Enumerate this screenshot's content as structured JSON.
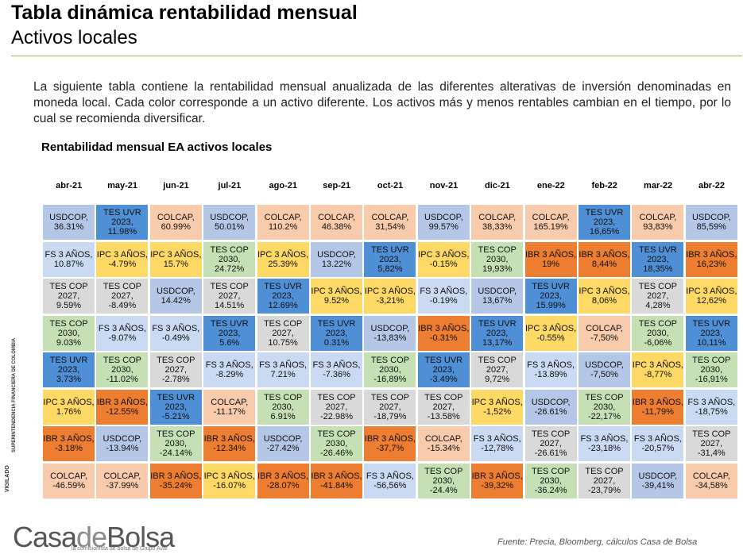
{
  "page": {
    "title": "Tabla dinámica rentabilidad mensual",
    "subtitle": "Activos locales",
    "intro": "La siguiente tabla contiene la rentabilidad mensual anualizada de las diferentes alterativas de inversión denominadas en moneda local. Cada color corresponde a un activo diferente. Los activos más y menos rentables cambian en el tiempo, por lo cual se recomienda diversificar.",
    "table_title": "Rentabilidad mensual EA activos locales",
    "side_label_1": "VIGILADO",
    "side_label_2": "SUPERINTENDENCIA FINANCIERA DE COLOMBIA",
    "logo_main_1": "Casa",
    "logo_main_2": "de",
    "logo_main_3": "Bolsa",
    "logo_tagline": "la comisionista de bolsa de Grupo Aval",
    "source": "Fuente: Precia, Bloomberg, cálculos Casa de Bolsa"
  },
  "colors": {
    "USDCOP": "#b4c7e7",
    "TES UVR 2023": "#4f8fd6",
    "COLCAP": "#f8cbad",
    "FS 3 AÑOS": "#c9daf2",
    "IPC 3 AÑOS": "#ffd966",
    "TES COP 2030": "#c5e0b4",
    "IBR 3 AÑOS": "#ed7d31",
    "TES COP 2027": "#d9d9d9"
  },
  "months": [
    "abr-21",
    "may-21",
    "jun-21",
    "jul-21",
    "ago-21",
    "sep-21",
    "oct-21",
    "nov-21",
    "dic-21",
    "ene-22",
    "feb-22",
    "mar-22",
    "abr-22"
  ],
  "rows": [
    [
      {
        "asset": "USDCOP",
        "lines": [
          "USDCOP,",
          "36.31%"
        ]
      },
      {
        "asset": "TES UVR 2023",
        "lines": [
          "TES UVR",
          "2023,",
          "11.98%"
        ]
      },
      {
        "asset": "COLCAP",
        "lines": [
          "COLCAP,",
          "60.99%"
        ]
      },
      {
        "asset": "USDCOP",
        "lines": [
          "USDCOP,",
          "50.01%"
        ]
      },
      {
        "asset": "COLCAP",
        "lines": [
          "COLCAP,",
          "110.2%"
        ]
      },
      {
        "asset": "COLCAP",
        "lines": [
          "COLCAP,",
          "46.38%"
        ]
      },
      {
        "asset": "COLCAP",
        "lines": [
          "COLCAP,",
          "31,54%"
        ]
      },
      {
        "asset": "USDCOP",
        "lines": [
          "USDCOP,",
          "99.57%"
        ]
      },
      {
        "asset": "COLCAP",
        "lines": [
          "COLCAP,",
          "38,33%"
        ]
      },
      {
        "asset": "COLCAP",
        "lines": [
          "COLCAP,",
          "165.19%"
        ]
      },
      {
        "asset": "TES UVR 2023",
        "lines": [
          "TES UVR",
          "2023,",
          "16,65%"
        ]
      },
      {
        "asset": "COLCAP",
        "lines": [
          "COLCAP,",
          "93,83%"
        ]
      },
      {
        "asset": "USDCOP",
        "lines": [
          "USDCOP,",
          "85,59%"
        ]
      }
    ],
    [
      {
        "asset": "FS 3 AÑOS",
        "lines": [
          "FS 3 AÑOS,",
          "10.87%"
        ]
      },
      {
        "asset": "IPC 3 AÑOS",
        "lines": [
          "IPC 3 AÑOS,",
          "-4.79%"
        ]
      },
      {
        "asset": "IPC 3 AÑOS",
        "lines": [
          "IPC 3 AÑOS,",
          "15.7%"
        ]
      },
      {
        "asset": "TES COP 2030",
        "lines": [
          "TES COP",
          "2030,",
          "24.72%"
        ]
      },
      {
        "asset": "IPC 3 AÑOS",
        "lines": [
          "IPC 3 AÑOS,",
          "25.39%"
        ]
      },
      {
        "asset": "USDCOP",
        "lines": [
          "USDCOP,",
          "13.22%"
        ]
      },
      {
        "asset": "TES UVR 2023",
        "lines": [
          "TES UVR",
          "2023,",
          "5,82%"
        ]
      },
      {
        "asset": "IPC 3 AÑOS",
        "lines": [
          "IPC 3 AÑOS,",
          "-0.15%"
        ]
      },
      {
        "asset": "TES COP 2030",
        "lines": [
          "TES COP",
          "2030,",
          "19,93%"
        ]
      },
      {
        "asset": "IBR 3 AÑOS",
        "lines": [
          "IBR 3 AÑOS,",
          "19%"
        ]
      },
      {
        "asset": "IBR 3 AÑOS",
        "lines": [
          "IBR 3 AÑOS,",
          "8,44%"
        ]
      },
      {
        "asset": "TES UVR 2023",
        "lines": [
          "TES UVR",
          "2023,",
          "18,35%"
        ]
      },
      {
        "asset": "IBR 3 AÑOS",
        "lines": [
          "IBR 3 AÑOS,",
          "16,23%"
        ]
      }
    ],
    [
      {
        "asset": "TES COP 2027",
        "lines": [
          "TES COP",
          "2027,",
          "9.59%"
        ]
      },
      {
        "asset": "TES COP 2027",
        "lines": [
          "TES COP",
          "2027,",
          "-8.49%"
        ]
      },
      {
        "asset": "USDCOP",
        "lines": [
          "USDCOP,",
          "14.42%"
        ]
      },
      {
        "asset": "TES COP 2027",
        "lines": [
          "TES COP",
          "2027,",
          "14.51%"
        ]
      },
      {
        "asset": "TES UVR 2023",
        "lines": [
          "TES UVR",
          "2023,",
          "12.69%"
        ]
      },
      {
        "asset": "IPC 3 AÑOS",
        "lines": [
          "IPC 3 AÑOS,",
          "9.52%"
        ]
      },
      {
        "asset": "IPC 3 AÑOS",
        "lines": [
          "IPC 3 AÑOS,",
          "-3,21%"
        ]
      },
      {
        "asset": "FS 3 AÑOS",
        "lines": [
          "FS 3 AÑOS,",
          "-0.19%"
        ]
      },
      {
        "asset": "USDCOP",
        "lines": [
          "USDCOP,",
          "13,67%"
        ]
      },
      {
        "asset": "TES UVR 2023",
        "lines": [
          "TES UVR",
          "2023,",
          "15.99%"
        ]
      },
      {
        "asset": "IPC 3 AÑOS",
        "lines": [
          "IPC 3 AÑOS,",
          "8,06%"
        ]
      },
      {
        "asset": "TES COP 2027",
        "lines": [
          "TES COP",
          "2027,",
          "4,28%"
        ]
      },
      {
        "asset": "IPC 3 AÑOS",
        "lines": [
          "IPC 3 AÑOS,",
          "12,62%"
        ]
      }
    ],
    [
      {
        "asset": "TES COP 2030",
        "lines": [
          "TES COP",
          "2030,",
          "9.03%"
        ]
      },
      {
        "asset": "FS 3 AÑOS",
        "lines": [
          "FS 3 AÑOS,",
          "-9.07%"
        ]
      },
      {
        "asset": "FS 3 AÑOS",
        "lines": [
          "FS 3 AÑOS,",
          "-0.49%"
        ]
      },
      {
        "asset": "TES UVR 2023",
        "lines": [
          "TES UVR",
          "2023,",
          "5.6%"
        ]
      },
      {
        "asset": "TES COP 2027",
        "lines": [
          "TES COP",
          "2027,",
          "10.75%"
        ]
      },
      {
        "asset": "TES UVR 2023",
        "lines": [
          "TES UVR",
          "2023,",
          "0.31%"
        ]
      },
      {
        "asset": "USDCOP",
        "lines": [
          "USDCOP,",
          "-13,83%"
        ]
      },
      {
        "asset": "IBR 3 AÑOS",
        "lines": [
          "IBR 3 AÑOS,",
          "-0.31%"
        ]
      },
      {
        "asset": "TES UVR 2023",
        "lines": [
          "TES UVR",
          "2023,",
          "13,17%"
        ]
      },
      {
        "asset": "IPC 3 AÑOS",
        "lines": [
          "IPC 3 AÑOS,",
          "-0.55%"
        ]
      },
      {
        "asset": "COLCAP",
        "lines": [
          "COLCAP,",
          "-7,50%"
        ]
      },
      {
        "asset": "TES COP 2030",
        "lines": [
          "TES COP",
          "2030,",
          "-6,06%"
        ]
      },
      {
        "asset": "TES UVR 2023",
        "lines": [
          "TES UVR",
          "2023,",
          "10,11%"
        ]
      }
    ],
    [
      {
        "asset": "TES UVR 2023",
        "lines": [
          "TES UVR",
          "2023,",
          "3.73%"
        ]
      },
      {
        "asset": "TES COP 2030",
        "lines": [
          "TES COP",
          "2030,",
          "-11.02%"
        ]
      },
      {
        "asset": "TES COP 2027",
        "lines": [
          "TES COP",
          "2027,",
          "-2.78%"
        ]
      },
      {
        "asset": "FS 3 AÑOS",
        "lines": [
          "FS 3 AÑOS,",
          "-8.29%"
        ]
      },
      {
        "asset": "FS 3 AÑOS",
        "lines": [
          "FS 3 AÑOS,",
          "7.21%"
        ]
      },
      {
        "asset": "FS 3 AÑOS",
        "lines": [
          "FS 3 AÑOS,",
          "-7.36%"
        ]
      },
      {
        "asset": "TES COP 2030",
        "lines": [
          "TES COP",
          "2030,",
          "-16,89%"
        ]
      },
      {
        "asset": "TES UVR 2023",
        "lines": [
          "TES UVR",
          "2023,",
          "-3.49%"
        ]
      },
      {
        "asset": "TES COP 2027",
        "lines": [
          "TES COP",
          "2027,",
          "9,72%"
        ]
      },
      {
        "asset": "FS 3 AÑOS",
        "lines": [
          "FS 3 AÑOS,",
          "-13.89%"
        ]
      },
      {
        "asset": "USDCOP",
        "lines": [
          "USDCOP,",
          "-7,50%"
        ]
      },
      {
        "asset": "IPC 3 AÑOS",
        "lines": [
          "IPC 3 AÑOS,",
          "-8,77%"
        ]
      },
      {
        "asset": "TES COP 2030",
        "lines": [
          "TES COP",
          "2030,",
          "-16,91%"
        ]
      }
    ],
    [
      {
        "asset": "IPC 3 AÑOS",
        "lines": [
          "IPC 3 AÑOS,",
          "1.76%"
        ]
      },
      {
        "asset": "IBR 3 AÑOS",
        "lines": [
          "IBR 3 AÑOS,",
          "-12.55%"
        ]
      },
      {
        "asset": "TES UVR 2023",
        "lines": [
          "TES UVR",
          "2023,",
          "-5.21%"
        ]
      },
      {
        "asset": "COLCAP",
        "lines": [
          "COLCAP,",
          "-11.17%"
        ]
      },
      {
        "asset": "TES COP 2030",
        "lines": [
          "TES COP",
          "2030,",
          "6.91%"
        ]
      },
      {
        "asset": "TES COP 2027",
        "lines": [
          "TES COP",
          "2027,",
          "-22.98%"
        ]
      },
      {
        "asset": "TES COP 2027",
        "lines": [
          "TES COP",
          "2027,",
          "-18,79%"
        ]
      },
      {
        "asset": "TES COP 2027",
        "lines": [
          "TES COP",
          "2027,",
          "-13.58%"
        ]
      },
      {
        "asset": "IPC 3 AÑOS",
        "lines": [
          "IPC 3 AÑOS,",
          "-1,52%"
        ]
      },
      {
        "asset": "USDCOP",
        "lines": [
          "USDCOP,",
          "-26.61%"
        ]
      },
      {
        "asset": "TES COP 2030",
        "lines": [
          "TES COP",
          "2030,",
          "-22,17%"
        ]
      },
      {
        "asset": "IBR 3 AÑOS",
        "lines": [
          "IBR 3 AÑOS,",
          "-11,79%"
        ]
      },
      {
        "asset": "FS 3 AÑOS",
        "lines": [
          "FS 3 AÑOS,",
          "-18,75%"
        ]
      }
    ],
    [
      {
        "asset": "IBR 3 AÑOS",
        "lines": [
          "IBR 3 AÑOS,",
          "-3.18%"
        ]
      },
      {
        "asset": "USDCOP",
        "lines": [
          "USDCOP,",
          "-13.94%"
        ]
      },
      {
        "asset": "TES COP 2030",
        "lines": [
          "TES COP",
          "2030,",
          "-24.14%"
        ]
      },
      {
        "asset": "IBR 3 AÑOS",
        "lines": [
          "IBR 3 AÑOS,",
          "-12.34%"
        ]
      },
      {
        "asset": "USDCOP",
        "lines": [
          "USDCOP,",
          "-27.42%"
        ]
      },
      {
        "asset": "TES COP 2030",
        "lines": [
          "TES COP",
          "2030,",
          "-26.46%"
        ]
      },
      {
        "asset": "IBR 3 AÑOS",
        "lines": [
          "IBR 3 AÑOS,",
          "-37,7%"
        ]
      },
      {
        "asset": "COLCAP",
        "lines": [
          "COLCAP,",
          "-15.34%"
        ]
      },
      {
        "asset": "FS 3 AÑOS",
        "lines": [
          "FS 3 AÑOS,",
          "-12,78%"
        ]
      },
      {
        "asset": "TES COP 2027",
        "lines": [
          "TES COP",
          "2027,",
          "-26.61%"
        ]
      },
      {
        "asset": "FS 3 AÑOS",
        "lines": [
          "FS 3 AÑOS,",
          "-23,18%"
        ]
      },
      {
        "asset": "FS 3 AÑOS",
        "lines": [
          "FS 3 AÑOS,",
          "-20,57%"
        ]
      },
      {
        "asset": "TES COP 2027",
        "lines": [
          "TES COP",
          "2027,",
          "-31,4%"
        ]
      }
    ],
    [
      {
        "asset": "COLCAP",
        "lines": [
          "COLCAP,",
          "-46.59%"
        ]
      },
      {
        "asset": "COLCAP",
        "lines": [
          "COLCAP,",
          "-37.99%"
        ]
      },
      {
        "asset": "IBR 3 AÑOS",
        "lines": [
          "IBR 3 AÑOS,",
          "-35.24%"
        ]
      },
      {
        "asset": "IPC 3 AÑOS",
        "lines": [
          "IPC 3 AÑOS,",
          "-16.07%"
        ]
      },
      {
        "asset": "IBR 3 AÑOS",
        "lines": [
          "IBR 3 AÑOS,",
          "-28.07%"
        ]
      },
      {
        "asset": "IBR 3 AÑOS",
        "lines": [
          "IBR 3 AÑOS,",
          "-41.84%"
        ]
      },
      {
        "asset": "FS 3 AÑOS",
        "lines": [
          "FS 3 AÑOS,",
          "-56,56%"
        ]
      },
      {
        "asset": "TES COP 2030",
        "lines": [
          "TES COP",
          "2030,",
          "-24.4%"
        ]
      },
      {
        "asset": "IBR 3 AÑOS",
        "lines": [
          "IBR 3 AÑOS,",
          "-39,32%"
        ]
      },
      {
        "asset": "TES COP 2030",
        "lines": [
          "TES COP",
          "2030,",
          "-36.24%"
        ]
      },
      {
        "asset": "TES COP 2027",
        "lines": [
          "TES COP",
          "2027,",
          "-23,79%"
        ]
      },
      {
        "asset": "USDCOP",
        "lines": [
          "USDCOP,",
          "-39,41%"
        ]
      },
      {
        "asset": "COLCAP",
        "lines": [
          "COLCAP,",
          "-34,58%"
        ]
      }
    ]
  ]
}
